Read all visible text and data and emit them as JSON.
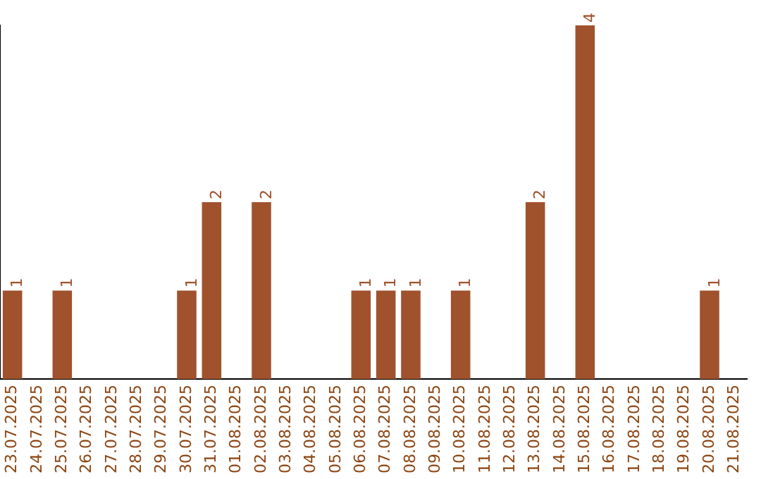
{
  "chart_data": {
    "type": "bar",
    "categories": [
      "23.07.2025",
      "24.07.2025",
      "25.07.2025",
      "26.07.2025",
      "27.07.2025",
      "28.07.2025",
      "29.07.2025",
      "30.07.2025",
      "31.07.2025",
      "01.08.2025",
      "02.08.2025",
      "03.08.2025",
      "04.08.2025",
      "05.08.2025",
      "06.08.2025",
      "07.08.2025",
      "08.08.2025",
      "09.08.2025",
      "10.08.2025",
      "11.08.2025",
      "12.08.2025",
      "13.08.2025",
      "14.08.2025",
      "15.08.2025",
      "16.08.2025",
      "17.08.2025",
      "18.08.2025",
      "19.08.2025",
      "20.08.2025",
      "21.08.2025"
    ],
    "values": [
      1,
      0,
      1,
      0,
      0,
      0,
      0,
      1,
      2,
      0,
      2,
      0,
      0,
      0,
      1,
      1,
      1,
      0,
      1,
      0,
      0,
      2,
      0,
      4,
      0,
      0,
      0,
      0,
      1,
      0
    ],
    "value_labels": [
      "1",
      null,
      "1",
      null,
      null,
      null,
      null,
      "1",
      "2",
      null,
      "2",
      null,
      null,
      null,
      "1",
      "1",
      "1",
      null,
      "1",
      null,
      null,
      "2",
      null,
      "4",
      null,
      null,
      null,
      null,
      "1",
      null
    ],
    "color": "#a0522d",
    "ylim": [
      0,
      4
    ],
    "tick_labels": "x",
    "grid": false,
    "legend": false
  }
}
